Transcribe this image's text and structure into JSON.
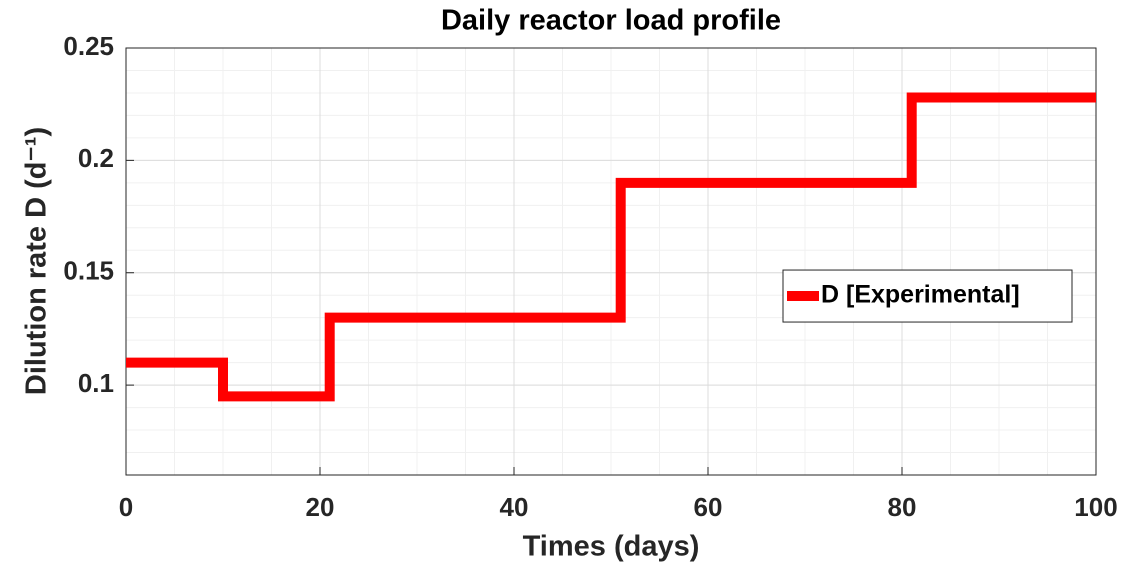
{
  "chart_data": {
    "type": "line",
    "title": "Daily reactor load profile",
    "xlabel": "Times (days)",
    "ylabel": "Dilution rate D (d⁻¹)",
    "x": [
      0,
      10,
      10,
      21,
      21,
      51,
      51,
      81,
      81,
      100
    ],
    "series": [
      {
        "name": "D [Experimental]",
        "color": "#ff0000",
        "values": [
          0.11,
          0.11,
          0.095,
          0.095,
          0.13,
          0.13,
          0.19,
          0.19,
          0.228,
          0.228
        ]
      }
    ],
    "xlim": [
      0,
      100
    ],
    "xticks": [
      0,
      20,
      40,
      60,
      80,
      100
    ],
    "ylim": [
      0.06,
      0.25
    ],
    "yticks": [
      0.1,
      0.15,
      0.2,
      0.25
    ],
    "grid": true,
    "minor_grid": true,
    "legend": "east"
  }
}
